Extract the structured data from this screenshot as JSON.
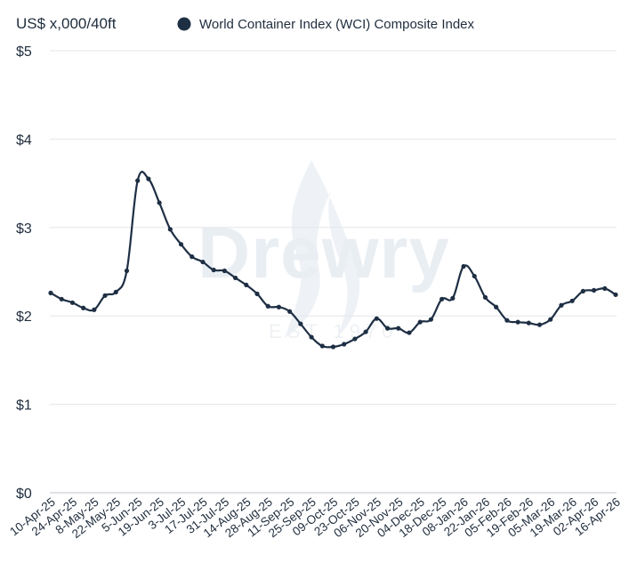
{
  "chart_data": {
    "type": "line",
    "ylabel": "US$ x,000/40ft",
    "ylim": [
      0,
      5
    ],
    "yticks": [
      "$0",
      "$1",
      "$2",
      "$3",
      "$4",
      "$5"
    ],
    "ytick_values": [
      0,
      1,
      2,
      3,
      4,
      5
    ],
    "grid": "horizontal",
    "legend": "top",
    "watermark": {
      "text": "Drewry",
      "sub": "EST 1970"
    },
    "x_labels": [
      "10-Apr-25",
      "24-Apr-25",
      "8-May-25",
      "22-May-25",
      "5-Jun-25",
      "19-Jun-25",
      "3-Jul-25",
      "17-Jul-25",
      "31-Jul-25",
      "14-Aug-25",
      "28-Aug-25",
      "11-Sep-25",
      "25-Sep-25",
      "09-Oct-25",
      "23-Oct-25",
      "06-Nov-25",
      "20-Nov-25",
      "04-Dec-25",
      "18-Dec-25",
      "08-Jan-26",
      "22-Jan-26",
      "05-Feb-26",
      "19-Feb-26",
      "05-Mar-26",
      "19-Mar-26",
      "02-Apr-26",
      "16-Apr-26"
    ],
    "series": [
      {
        "name": "World Container Index (WCI) Composite Index",
        "color": "#1e2f44",
        "values": [
          2.26,
          2.19,
          2.15,
          2.09,
          2.07,
          2.23,
          2.27,
          2.51,
          3.53,
          3.55,
          3.28,
          2.98,
          2.81,
          2.67,
          2.61,
          2.52,
          2.51,
          2.43,
          2.35,
          2.25,
          2.11,
          2.1,
          2.05,
          1.91,
          1.76,
          1.66,
          1.65,
          1.68,
          1.74,
          1.82,
          1.97,
          1.86,
          1.86,
          1.81,
          1.93,
          1.96,
          2.19,
          2.2,
          2.56,
          2.45,
          2.21,
          2.1,
          1.95,
          1.93,
          1.92,
          1.9,
          1.96,
          2.12,
          2.17,
          2.28,
          2.29,
          2.31,
          2.24
        ]
      }
    ]
  },
  "icons": {
    "legend_marker": "filled-circle-icon",
    "watermark_logo": "drewry-flame-logo"
  }
}
